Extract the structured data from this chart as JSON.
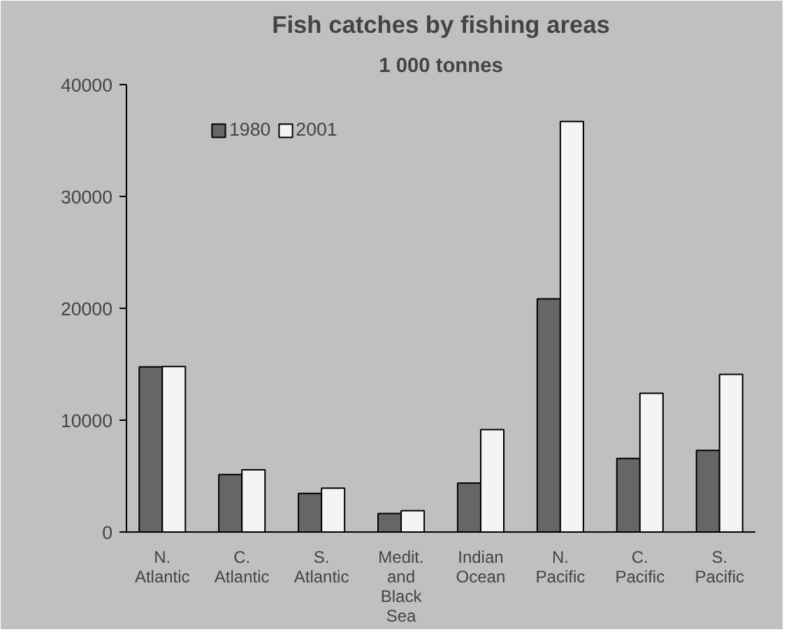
{
  "chart_data": {
    "type": "bar",
    "title": "Fish catches by fishing areas",
    "subtitle": "1 000 tonnes",
    "categories": [
      "N. Atlantic",
      "C. Atlantic",
      "S. Atlantic",
      "Medit. and Black Sea",
      "Indian Ocean",
      "N. Pacific",
      "C. Pacific",
      "S. Pacific"
    ],
    "series": [
      {
        "name": "1980",
        "color": "#666666",
        "values": [
          14760,
          5140,
          3460,
          1650,
          4380,
          20840,
          6580,
          7290
        ]
      },
      {
        "name": "2001",
        "color": "#f4f4f4",
        "values": [
          14800,
          5570,
          3920,
          1900,
          9150,
          36710,
          12400,
          14090
        ]
      }
    ],
    "ylim": [
      0,
      40000
    ],
    "yticks": [
      0,
      10000,
      20000,
      30000,
      40000
    ],
    "grid": false,
    "legend": "top left"
  }
}
